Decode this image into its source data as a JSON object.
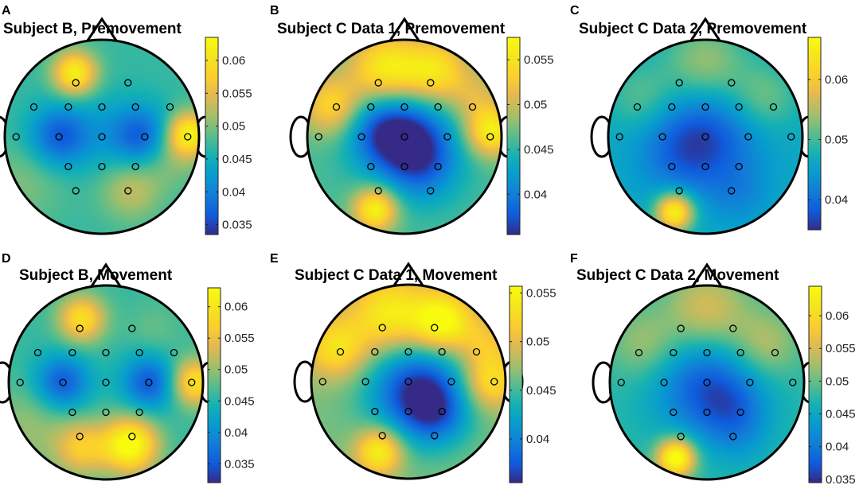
{
  "chart_data": [
    {
      "type": "heatmap",
      "panel_letter": "A",
      "title": "Subject B, Premovement",
      "colorbar_ticks": [
        "0.06",
        "0.055",
        "0.05",
        "0.045",
        "0.04",
        "0.035"
      ],
      "colorbar_range": [
        0.0335,
        0.0635
      ],
      "background_value": 0.047,
      "electrodes": [
        [
          -0.28,
          0.58
        ],
        [
          0.28,
          0.58
        ],
        [
          -0.73,
          0.32
        ],
        [
          -0.36,
          0.32
        ],
        [
          0,
          0.32
        ],
        [
          0.36,
          0.32
        ],
        [
          0.73,
          0.32
        ],
        [
          -0.92,
          0
        ],
        [
          -0.46,
          0
        ],
        [
          0,
          0
        ],
        [
          0.46,
          0
        ],
        [
          0.92,
          0
        ],
        [
          -0.36,
          -0.32
        ],
        [
          0,
          -0.32
        ],
        [
          0.36,
          -0.32
        ],
        [
          -0.28,
          -0.58
        ],
        [
          0.28,
          -0.58
        ]
      ],
      "blobs": [
        {
          "x": -0.28,
          "y": 0.66,
          "amp": 0.015,
          "sigma": 0.16
        },
        {
          "x": 0.9,
          "y": 0.03,
          "amp": 0.015,
          "sigma": 0.16
        },
        {
          "x": -0.45,
          "y": 0.0,
          "amp": -0.01,
          "sigma": 0.22
        },
        {
          "x": 0.42,
          "y": 0.0,
          "amp": -0.01,
          "sigma": 0.22
        },
        {
          "x": 0.0,
          "y": 0.05,
          "amp": -0.003,
          "sigma": 0.3
        },
        {
          "x": 0.3,
          "y": -0.55,
          "amp": 0.006,
          "sigma": 0.22
        },
        {
          "x": 0.7,
          "y": -0.2,
          "amp": 0.004,
          "sigma": 0.22
        },
        {
          "x": -0.8,
          "y": -0.45,
          "amp": 0.003,
          "sigma": 0.3
        }
      ]
    },
    {
      "type": "heatmap",
      "panel_letter": "B",
      "title": "Subject C Data 1, Premovement",
      "colorbar_ticks": [
        "0.055",
        "0.05",
        "0.045",
        "0.04"
      ],
      "colorbar_range": [
        0.0355,
        0.0575
      ],
      "background_value": 0.046,
      "electrodes": [
        [
          -0.28,
          0.58
        ],
        [
          0.28,
          0.58
        ],
        [
          -0.73,
          0.32
        ],
        [
          -0.36,
          0.32
        ],
        [
          0,
          0.32
        ],
        [
          0.36,
          0.32
        ],
        [
          0.73,
          0.32
        ],
        [
          -0.92,
          0
        ],
        [
          -0.46,
          0
        ],
        [
          0,
          0
        ],
        [
          0.46,
          0
        ],
        [
          0.92,
          0
        ],
        [
          -0.36,
          -0.32
        ],
        [
          0,
          -0.32
        ],
        [
          0.36,
          -0.32
        ],
        [
          -0.28,
          -0.58
        ],
        [
          0.28,
          -0.58
        ]
      ],
      "blobs": [
        {
          "x": -0.2,
          "y": 0.7,
          "amp": 0.01,
          "sigma": 0.26
        },
        {
          "x": 0.32,
          "y": 0.68,
          "amp": 0.009,
          "sigma": 0.24
        },
        {
          "x": -0.75,
          "y": 0.32,
          "amp": 0.008,
          "sigma": 0.22
        },
        {
          "x": 0.9,
          "y": 0.05,
          "amp": 0.01,
          "sigma": 0.18
        },
        {
          "x": -0.3,
          "y": -0.75,
          "amp": 0.011,
          "sigma": 0.16
        },
        {
          "x": 0.0,
          "y": 0.0,
          "amp": -0.01,
          "sigma": 0.32
        },
        {
          "x": 0.2,
          "y": -0.3,
          "amp": -0.005,
          "sigma": 0.28
        },
        {
          "x": -0.3,
          "y": 0.1,
          "amp": -0.004,
          "sigma": 0.25
        },
        {
          "x": 0.75,
          "y": 0.4,
          "amp": 0.004,
          "sigma": 0.2
        }
      ]
    },
    {
      "type": "heatmap",
      "panel_letter": "C",
      "title": "Subject C Data 2, Premovement",
      "colorbar_ticks": [
        "0.06",
        "0.05",
        "0.04"
      ],
      "colorbar_range": [
        0.035,
        0.067
      ],
      "background_value": 0.0465,
      "electrodes": [
        [
          -0.28,
          0.58
        ],
        [
          0.28,
          0.58
        ],
        [
          -0.73,
          0.32
        ],
        [
          -0.36,
          0.32
        ],
        [
          0,
          0.32
        ],
        [
          0.36,
          0.32
        ],
        [
          0.73,
          0.32
        ],
        [
          -0.92,
          0
        ],
        [
          -0.46,
          0
        ],
        [
          0,
          0
        ],
        [
          0.46,
          0
        ],
        [
          0.92,
          0
        ],
        [
          -0.36,
          -0.32
        ],
        [
          0,
          -0.32
        ],
        [
          0.36,
          -0.32
        ],
        [
          -0.28,
          -0.58
        ],
        [
          0.28,
          -0.58
        ]
      ],
      "blobs": [
        {
          "x": 0.0,
          "y": 0.75,
          "amp": 0.008,
          "sigma": 0.3
        },
        {
          "x": -0.65,
          "y": 0.4,
          "amp": 0.005,
          "sigma": 0.25
        },
        {
          "x": 0.6,
          "y": 0.4,
          "amp": 0.006,
          "sigma": 0.25
        },
        {
          "x": 0.0,
          "y": 0.0,
          "amp": -0.009,
          "sigma": 0.4
        },
        {
          "x": -0.3,
          "y": -0.2,
          "amp": -0.003,
          "sigma": 0.3
        },
        {
          "x": -0.32,
          "y": -0.78,
          "amp": 0.02,
          "sigma": 0.14
        },
        {
          "x": 0.35,
          "y": -0.6,
          "amp": -0.003,
          "sigma": 0.22
        }
      ]
    },
    {
      "type": "heatmap",
      "panel_letter": "D",
      "title": "Subject B, Movement",
      "colorbar_ticks": [
        "0.06",
        "0.055",
        "0.05",
        "0.045",
        "0.04",
        "0.035"
      ],
      "colorbar_range": [
        0.032,
        0.063
      ],
      "background_value": 0.046,
      "electrodes": [
        [
          -0.28,
          0.58
        ],
        [
          0.28,
          0.58
        ],
        [
          -0.73,
          0.32
        ],
        [
          -0.36,
          0.32
        ],
        [
          0,
          0.32
        ],
        [
          0.36,
          0.32
        ],
        [
          0.73,
          0.32
        ],
        [
          -0.92,
          0
        ],
        [
          -0.46,
          0
        ],
        [
          0,
          0
        ],
        [
          0.46,
          0
        ],
        [
          0.92,
          0
        ],
        [
          -0.36,
          -0.32
        ],
        [
          0,
          -0.32
        ],
        [
          0.36,
          -0.32
        ],
        [
          -0.28,
          -0.58
        ],
        [
          0.28,
          -0.58
        ]
      ],
      "blobs": [
        {
          "x": -0.25,
          "y": 0.66,
          "amp": 0.013,
          "sigma": 0.17
        },
        {
          "x": 0.92,
          "y": 0.0,
          "amp": 0.014,
          "sigma": 0.17
        },
        {
          "x": -0.45,
          "y": 0.0,
          "amp": -0.011,
          "sigma": 0.2
        },
        {
          "x": 0.45,
          "y": 0.0,
          "amp": -0.011,
          "sigma": 0.2
        },
        {
          "x": 0.25,
          "y": -0.65,
          "amp": 0.018,
          "sigma": 0.2
        },
        {
          "x": -0.25,
          "y": -0.68,
          "amp": 0.01,
          "sigma": 0.2
        },
        {
          "x": -0.8,
          "y": -0.45,
          "amp": 0.004,
          "sigma": 0.3
        },
        {
          "x": 0.5,
          "y": 0.55,
          "amp": 0.002,
          "sigma": 0.2
        }
      ]
    },
    {
      "type": "heatmap",
      "panel_letter": "E",
      "title": "Subject C Data 1, Movement",
      "colorbar_ticks": [
        "0.055",
        "0.05",
        "0.045",
        "0.04"
      ],
      "colorbar_range": [
        0.0355,
        0.0557
      ],
      "background_value": 0.0465,
      "electrodes": [
        [
          -0.28,
          0.58
        ],
        [
          0.28,
          0.58
        ],
        [
          -0.73,
          0.32
        ],
        [
          -0.36,
          0.32
        ],
        [
          0,
          0.32
        ],
        [
          0.36,
          0.32
        ],
        [
          0.73,
          0.32
        ],
        [
          -0.92,
          0
        ],
        [
          -0.46,
          0
        ],
        [
          0,
          0
        ],
        [
          0.46,
          0
        ],
        [
          0.92,
          0
        ],
        [
          -0.36,
          -0.32
        ],
        [
          0,
          -0.32
        ],
        [
          0.36,
          -0.32
        ],
        [
          -0.28,
          -0.58
        ],
        [
          0.28,
          -0.58
        ]
      ],
      "blobs": [
        {
          "x": -0.2,
          "y": 0.7,
          "amp": 0.008,
          "sigma": 0.28
        },
        {
          "x": 0.35,
          "y": 0.62,
          "amp": 0.01,
          "sigma": 0.22
        },
        {
          "x": -0.75,
          "y": 0.35,
          "amp": 0.007,
          "sigma": 0.22
        },
        {
          "x": 0.85,
          "y": 0.0,
          "amp": 0.007,
          "sigma": 0.2
        },
        {
          "x": -0.3,
          "y": -0.72,
          "amp": 0.009,
          "sigma": 0.17
        },
        {
          "x": 0.1,
          "y": -0.1,
          "amp": -0.011,
          "sigma": 0.35
        },
        {
          "x": 0.3,
          "y": -0.35,
          "amp": -0.004,
          "sigma": 0.22
        },
        {
          "x": 0.8,
          "y": 0.4,
          "amp": 0.004,
          "sigma": 0.2
        }
      ]
    },
    {
      "type": "heatmap",
      "panel_letter": "F",
      "title": "Subject C Data 2, Movement",
      "colorbar_ticks": [
        "0.06",
        "0.055",
        "0.05",
        "0.045",
        "0.04",
        "0.035"
      ],
      "colorbar_range": [
        0.0345,
        0.0645
      ],
      "background_value": 0.0475,
      "electrodes": [
        [
          -0.28,
          0.58
        ],
        [
          0.28,
          0.58
        ],
        [
          -0.73,
          0.32
        ],
        [
          -0.36,
          0.32
        ],
        [
          0,
          0.32
        ],
        [
          0.36,
          0.32
        ],
        [
          0.73,
          0.32
        ],
        [
          -0.92,
          0
        ],
        [
          -0.46,
          0
        ],
        [
          0,
          0
        ],
        [
          0.46,
          0
        ],
        [
          0.92,
          0
        ],
        [
          -0.36,
          -0.32
        ],
        [
          0,
          -0.32
        ],
        [
          0.36,
          -0.32
        ],
        [
          -0.28,
          -0.58
        ],
        [
          0.28,
          -0.58
        ]
      ],
      "blobs": [
        {
          "x": 0.0,
          "y": 0.75,
          "amp": 0.008,
          "sigma": 0.3
        },
        {
          "x": -0.65,
          "y": 0.4,
          "amp": 0.005,
          "sigma": 0.25
        },
        {
          "x": 0.6,
          "y": 0.4,
          "amp": 0.006,
          "sigma": 0.25
        },
        {
          "x": 0.0,
          "y": -0.05,
          "amp": -0.01,
          "sigma": 0.38
        },
        {
          "x": 0.3,
          "y": -0.3,
          "amp": -0.004,
          "sigma": 0.25
        },
        {
          "x": -0.32,
          "y": -0.78,
          "amp": 0.019,
          "sigma": 0.14
        },
        {
          "x": 0.35,
          "y": -0.6,
          "amp": -0.002,
          "sigma": 0.22
        }
      ]
    }
  ]
}
